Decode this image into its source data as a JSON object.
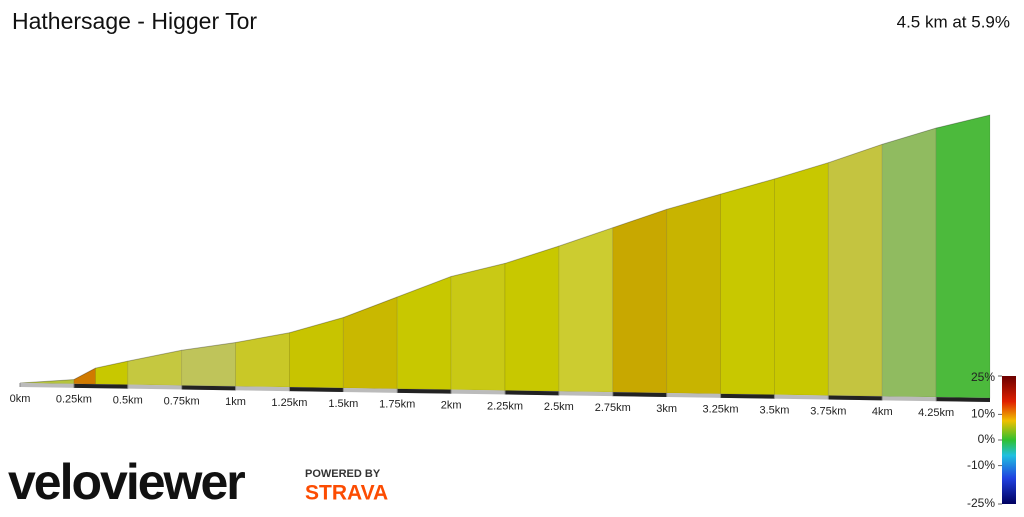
{
  "chart_data": {
    "type": "area",
    "title": "Hathersage - Higger Tor",
    "subtitle": "4.5 km at 5.9%",
    "x": [
      0,
      0.25,
      0.35,
      0.5,
      0.75,
      1,
      1.25,
      1.5,
      1.75,
      2,
      2.25,
      2.5,
      2.75,
      3,
      3.25,
      3.5,
      3.75,
      4,
      4.25,
      4.5
    ],
    "values": [
      0,
      4,
      15,
      22,
      33,
      41,
      51,
      66,
      86,
      106,
      119,
      136,
      154,
      172,
      187,
      202,
      218,
      236,
      252,
      265
    ],
    "segment_colors": [
      "#b5c43c",
      "#d07a00",
      "#c8c800",
      "#c5c840",
      "#bfc45a",
      "#c9c827",
      "#c8c400",
      "#c9b800",
      "#c8c800",
      "#c9c915",
      "#c8c800",
      "#cccc30",
      "#c8a800",
      "#c8b400",
      "#c8c800",
      "#c8c800",
      "#c4c440",
      "#90bb60",
      "#4cba3c"
    ],
    "xlim": [
      0,
      4.5
    ],
    "ylim": [
      0,
      265
    ],
    "xticks": [
      {
        "value": 0,
        "label": "0km"
      },
      {
        "value": 0.25,
        "label": "0.25km"
      },
      {
        "value": 0.5,
        "label": "0.5km"
      },
      {
        "value": 0.75,
        "label": "0.75km"
      },
      {
        "value": 1,
        "label": "1km"
      },
      {
        "value": 1.25,
        "label": "1.25km"
      },
      {
        "value": 1.5,
        "label": "1.5km"
      },
      {
        "value": 1.75,
        "label": "1.75km"
      },
      {
        "value": 2,
        "label": "2km"
      },
      {
        "value": 2.25,
        "label": "2.25km"
      },
      {
        "value": 2.5,
        "label": "2.5km"
      },
      {
        "value": 2.75,
        "label": "2.75km"
      },
      {
        "value": 3,
        "label": "3km"
      },
      {
        "value": 3.25,
        "label": "3.25km"
      },
      {
        "value": 3.5,
        "label": "3.5km"
      },
      {
        "value": 3.75,
        "label": "3.75km"
      },
      {
        "value": 4,
        "label": "4km"
      },
      {
        "value": 4.25,
        "label": "4.25km"
      }
    ],
    "gradient_scale": {
      "lim": [
        -25,
        25
      ],
      "ticks": [
        {
          "value": 25,
          "label": "25%"
        },
        {
          "value": 10,
          "label": "10%"
        },
        {
          "value": 0,
          "label": "0%"
        },
        {
          "value": -10,
          "label": "-10%"
        },
        {
          "value": -25,
          "label": "-25%"
        }
      ]
    }
  },
  "branding": {
    "logo": "veloviewer",
    "powered_by": "POWERED BY",
    "partner": "STRAVA"
  }
}
